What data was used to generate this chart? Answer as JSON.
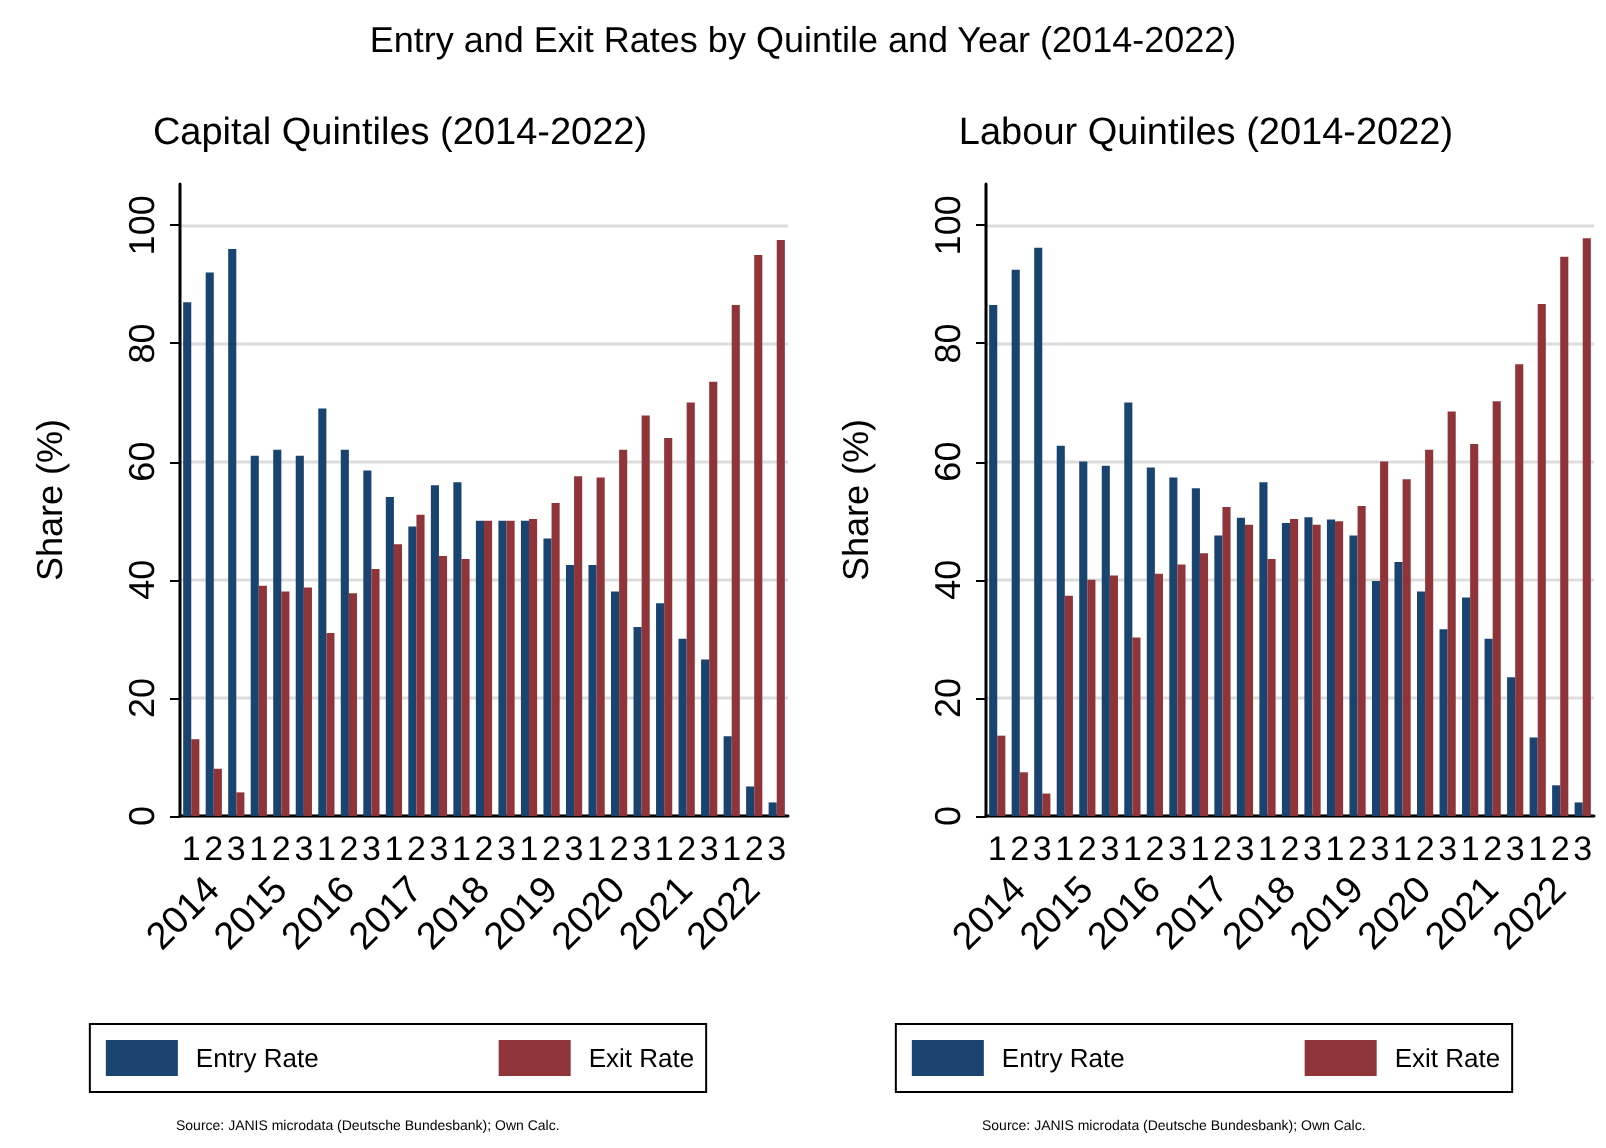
{
  "chart_data": [
    {
      "type": "bar",
      "title": "Entry and Exit Rates by Quintile and Year (2014-2022)",
      "subtitle": "Capital Quintiles (2014-2022)",
      "ylabel": "Share (%)",
      "categories": [
        "1",
        "2",
        "3",
        "1",
        "2",
        "3",
        "1",
        "2",
        "3",
        "1",
        "2",
        "3",
        "1",
        "2",
        "3",
        "1",
        "2",
        "3",
        "1",
        "2",
        "3",
        "1",
        "2",
        "3",
        "1",
        "2",
        "3"
      ],
      "series": [
        {
          "name": "Entry Rate",
          "color": "#1a4470",
          "values": [
            87,
            92,
            96,
            61,
            62,
            61,
            69,
            62,
            58.5,
            54,
            49,
            56,
            56.5,
            50,
            50,
            50,
            47,
            42.5,
            42.5,
            38,
            32,
            36,
            30,
            26.5,
            13.5,
            5,
            2.3
          ]
        },
        {
          "name": "Exit Rate",
          "color": "#8f3439",
          "values": [
            13,
            8,
            4,
            39,
            38,
            38.7,
            31,
            37.7,
            41.8,
            46,
            51,
            44,
            43.5,
            50,
            50,
            50.3,
            53,
            57.5,
            57.3,
            62,
            67.8,
            64,
            70,
            73.5,
            86.5,
            95,
            97.5
          ]
        }
      ],
      "ylim": [
        0,
        107
      ],
      "yticks": [
        0,
        20,
        40,
        60,
        80,
        100
      ],
      "grid": "y",
      "legend": "bottom",
      "annotations": [
        "2014",
        "2015",
        "2016",
        "2017",
        "2018",
        "2019",
        "2020",
        "2021",
        "2022",
        "Source: JANIS microdata (Deutsche Bundesbank); Own Calc."
      ]
    },
    {
      "type": "bar",
      "subtitle": "Labour Quintiles (2014-2022)",
      "ylabel": "Share (%)",
      "categories": [
        "1",
        "2",
        "3",
        "1",
        "2",
        "3",
        "1",
        "2",
        "3",
        "1",
        "2",
        "3",
        "1",
        "2",
        "3",
        "1",
        "2",
        "3",
        "1",
        "2",
        "3",
        "1",
        "2",
        "3",
        "1",
        "2",
        "3"
      ],
      "series": [
        {
          "name": "Entry Rate",
          "color": "#1a4470",
          "values": [
            86.5,
            92.5,
            96.2,
            62.7,
            60,
            59.3,
            70,
            59,
            57.3,
            55.5,
            47.5,
            50.5,
            56.5,
            49.6,
            50.6,
            50.2,
            47.5,
            39.8,
            43,
            38,
            31.6,
            37,
            30,
            23.5,
            13.3,
            5.2,
            2.3
          ]
        },
        {
          "name": "Exit Rate",
          "color": "#8f3439",
          "values": [
            13.6,
            7.4,
            3.8,
            37.3,
            40,
            40.7,
            30.2,
            41,
            42.6,
            44.5,
            52.3,
            49.3,
            43.5,
            50.3,
            49.3,
            49.9,
            52.5,
            60,
            57,
            62,
            68.5,
            63,
            70.2,
            76.5,
            86.7,
            94.7,
            97.8
          ]
        }
      ],
      "ylim": [
        0,
        107
      ],
      "yticks": [
        0,
        20,
        40,
        60,
        80,
        100
      ],
      "grid": "y",
      "legend": "bottom",
      "annotations": [
        "2014",
        "2015",
        "2016",
        "2017",
        "2018",
        "2019",
        "2020",
        "2021",
        "2022",
        "Source: JANIS microdata (Deutsche Bundesbank); Own Calc."
      ]
    }
  ]
}
